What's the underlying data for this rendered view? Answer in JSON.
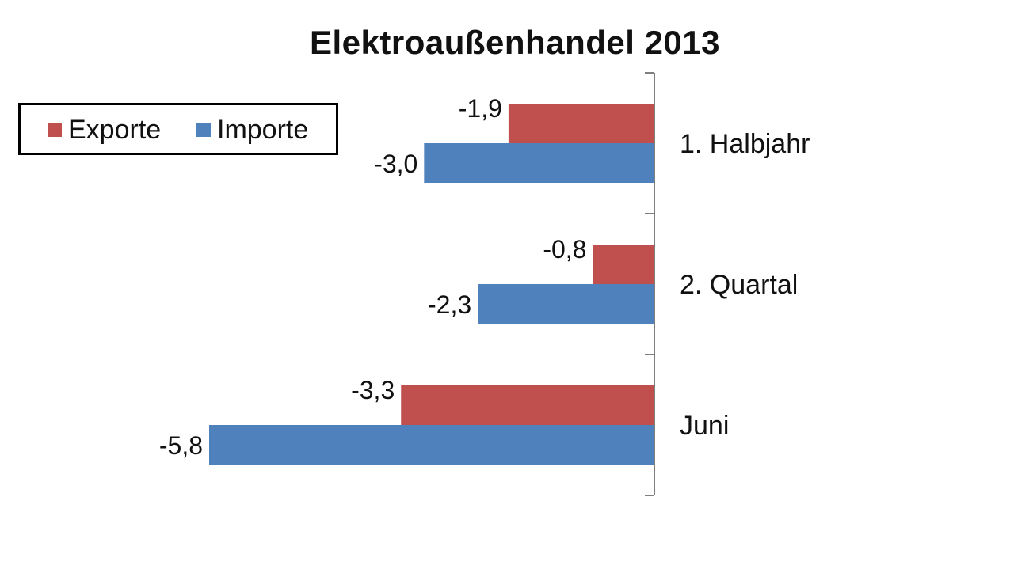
{
  "chart_data": {
    "type": "bar",
    "orientation": "horizontal",
    "title": "Elektroaußenhandel 2013",
    "categories": [
      "1. Halbjahr",
      "2. Quartal",
      "Juni"
    ],
    "series": [
      {
        "name": "Exporte",
        "color": "#C0504D",
        "values": [
          -1.9,
          -0.8,
          -3.3
        ],
        "labels": [
          "-1,9",
          "-0,8",
          "-3,3"
        ]
      },
      {
        "name": "Importe",
        "color": "#4F81BD",
        "values": [
          -3.0,
          -2.3,
          -5.8
        ],
        "labels": [
          "-3,0",
          "-2,3",
          "-5,8"
        ]
      }
    ],
    "xlim": [
      -5.8,
      0
    ],
    "grid": false,
    "legend_position": "top-left"
  }
}
